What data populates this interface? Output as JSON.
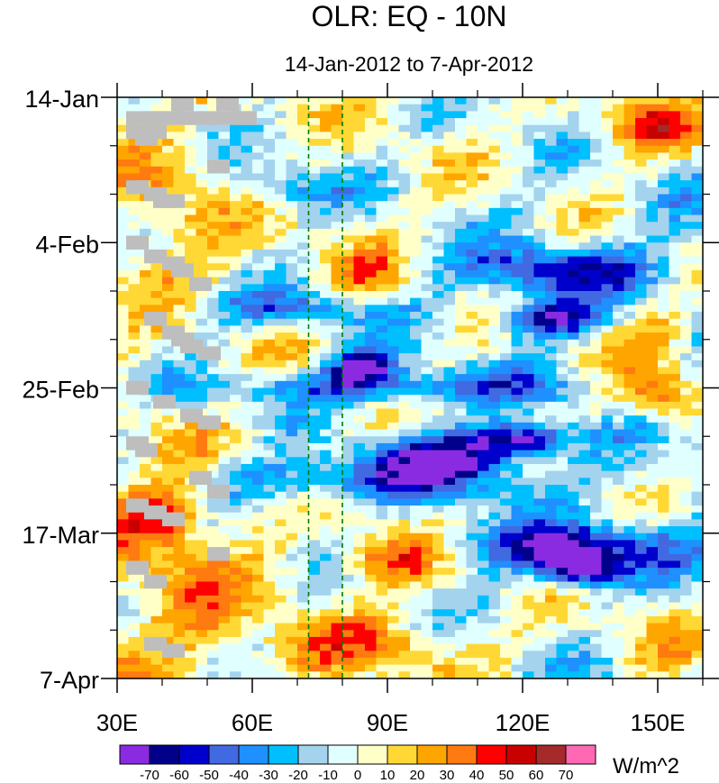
{
  "chart_data": {
    "type": "heatmap",
    "title": "OLR: EQ - 10N",
    "subtitle": "14-Jan-2012 to 7-Apr-2012",
    "x_tick_labels": [
      "30E",
      "60E",
      "90E",
      "120E",
      "150E"
    ],
    "x_ticks": [
      30,
      60,
      90,
      120,
      150
    ],
    "xlim": [
      30,
      160
    ],
    "y_tick_labels": [
      "14-Jan",
      "4-Feb",
      "25-Feb",
      "17-Mar",
      "7-Apr"
    ],
    "y_ticks": [
      0,
      21,
      42,
      63,
      84
    ],
    "ylim": [
      0,
      84
    ],
    "reference_lines_lon": [
      72.5,
      80
    ],
    "colorbar": {
      "unit": "W/m^2",
      "levels": [
        "-70",
        "-60",
        "-50",
        "-40",
        "-30",
        "-20",
        "-10",
        "0",
        "10",
        "20",
        "30",
        "40",
        "50",
        "60",
        "70"
      ],
      "colors": [
        "#8a2be2",
        "#00008b",
        "#0000cd",
        "#4169e1",
        "#1e90ff",
        "#00bfff",
        "#a4d3ee",
        "#e0ffff",
        "#ffffc8",
        "#ffd836",
        "#ffa500",
        "#ff7a10",
        "#ff0000",
        "#c80000",
        "#a52a2a",
        "#ff69b4"
      ]
    },
    "anomaly_features": [
      {
        "lon": [
          55,
          80
        ],
        "day": [
          10,
          16
        ],
        "value": -30
      },
      {
        "lon": [
          45,
          95
        ],
        "day": [
          28,
          33
        ],
        "value": -35
      },
      {
        "lon": [
          78,
          90
        ],
        "day": [
          37,
          41
        ],
        "value": -70
      },
      {
        "lon": [
          38,
          140
        ],
        "day": [
          40,
          44
        ],
        "value": -40
      },
      {
        "lon": [
          85,
          120
        ],
        "day": [
          49,
          55
        ],
        "value": -60
      },
      {
        "lon": [
          110,
          130
        ],
        "day": [
          48,
          51
        ],
        "value": -70
      },
      {
        "lon": [
          40,
          120
        ],
        "day": [
          53,
          58
        ],
        "value": -40
      },
      {
        "lon": [
          100,
          160
        ],
        "day": [
          62,
          68
        ],
        "value": -50
      },
      {
        "lon": [
          125,
          140
        ],
        "day": [
          66,
          70
        ],
        "value": -70
      },
      {
        "lon": [
          105,
          150
        ],
        "day": [
          22,
          28
        ],
        "value": -50
      },
      {
        "lon": [
          115,
          135
        ],
        "day": [
          30,
          34
        ],
        "value": -60
      },
      {
        "lon": [
          135,
          160
        ],
        "day": [
          0,
          8
        ],
        "value": 45
      },
      {
        "lon": [
          140,
          160
        ],
        "day": [
          40,
          46
        ],
        "value": 45
      },
      {
        "lon": [
          30,
          50
        ],
        "day": [
          55,
          65
        ],
        "value": 40
      },
      {
        "lon": [
          80,
          100
        ],
        "day": [
          63,
          70
        ],
        "value": 45
      },
      {
        "lon": [
          30,
          60
        ],
        "day": [
          60,
          84
        ],
        "value": 20
      },
      {
        "lon": [
          60,
          110
        ],
        "day": [
          75,
          84
        ],
        "value": 25
      },
      {
        "lon": [
          75,
          95
        ],
        "day": [
          22,
          30
        ],
        "value": 25
      },
      {
        "lon": [
          30,
          55
        ],
        "day": [
          10,
          25
        ],
        "value": 20
      },
      {
        "lon": [
          140,
          160
        ],
        "day": [
          70,
          84
        ],
        "value": 20
      },
      {
        "lon": [
          140,
          160
        ],
        "day": [
          30,
          40
        ],
        "value": 25
      }
    ],
    "missing_cells": [
      {
        "lon": 42,
        "day": 0
      },
      {
        "lon": 52,
        "day": 0
      },
      {
        "lon": 32,
        "day": 2
      },
      {
        "lon": 36,
        "day": 2
      },
      {
        "lon": 40,
        "day": 2
      },
      {
        "lon": 44,
        "day": 2
      },
      {
        "lon": 48,
        "day": 2
      },
      {
        "lon": 52,
        "day": 2
      },
      {
        "lon": 56,
        "day": 2
      },
      {
        "lon": 32,
        "day": 4
      },
      {
        "lon": 36,
        "day": 4
      },
      {
        "lon": 34,
        "day": 5
      },
      {
        "lon": 50,
        "day": 9
      },
      {
        "lon": 32,
        "day": 12
      },
      {
        "lon": 36,
        "day": 13
      },
      {
        "lon": 38,
        "day": 14
      },
      {
        "lon": 40,
        "day": 14
      },
      {
        "lon": 32,
        "day": 20
      },
      {
        "lon": 36,
        "day": 22
      },
      {
        "lon": 40,
        "day": 23
      },
      {
        "lon": 42,
        "day": 24
      },
      {
        "lon": 46,
        "day": 26
      },
      {
        "lon": 36,
        "day": 31
      },
      {
        "lon": 40,
        "day": 33
      },
      {
        "lon": 42,
        "day": 34
      },
      {
        "lon": 44,
        "day": 35
      },
      {
        "lon": 48,
        "day": 36
      },
      {
        "lon": 32,
        "day": 41
      },
      {
        "lon": 38,
        "day": 43
      },
      {
        "lon": 44,
        "day": 45
      },
      {
        "lon": 48,
        "day": 46
      },
      {
        "lon": 32,
        "day": 49
      },
      {
        "lon": 34,
        "day": 50
      },
      {
        "lon": 46,
        "day": 54
      },
      {
        "lon": 50,
        "day": 56
      },
      {
        "lon": 32,
        "day": 58
      },
      {
        "lon": 36,
        "day": 59
      },
      {
        "lon": 40,
        "day": 60
      },
      {
        "lon": 50,
        "day": 65
      },
      {
        "lon": 32,
        "day": 67
      },
      {
        "lon": 36,
        "day": 69
      },
      {
        "lon": 36,
        "day": 78
      },
      {
        "lon": 40,
        "day": 79
      }
    ]
  }
}
